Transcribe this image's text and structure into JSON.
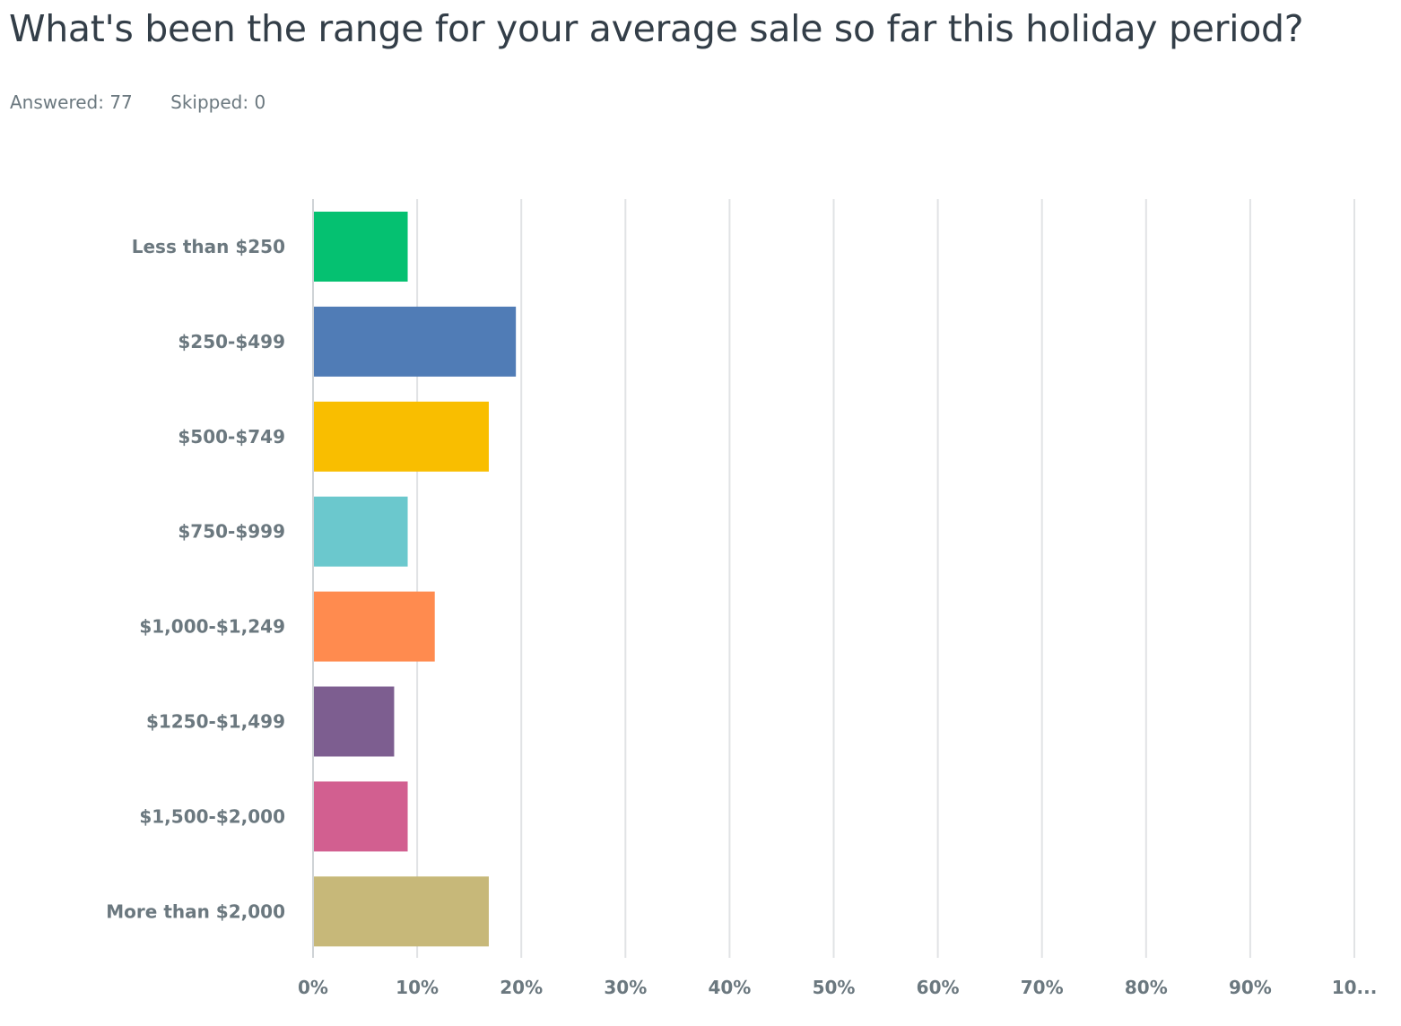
{
  "title": "What's been the range for your average sale so far this holiday period?",
  "answered": "Answered: 77",
  "skipped": "Skipped: 0",
  "chart_data": {
    "type": "bar",
    "orientation": "horizontal",
    "categories": [
      "Less than $250",
      "$250-$499",
      "$500-$749",
      "$750-$999",
      "$1,000-$1,249",
      "$1250-$1,499",
      "$1,500-$2,000",
      "More than $2,000"
    ],
    "values": [
      9.09,
      19.48,
      16.88,
      9.09,
      11.69,
      7.79,
      9.09,
      16.88
    ],
    "colors": [
      "#05c171",
      "#507cb6",
      "#f9be00",
      "#6bc8cd",
      "#ff8b4f",
      "#7d5e90",
      "#d25f90",
      "#c7b879"
    ],
    "xlim": [
      0,
      100
    ],
    "xticks": [
      "0%",
      "10%",
      "20%",
      "30%",
      "40%",
      "50%",
      "60%",
      "70%",
      "80%",
      "90%",
      "10..."
    ],
    "grid": true
  }
}
